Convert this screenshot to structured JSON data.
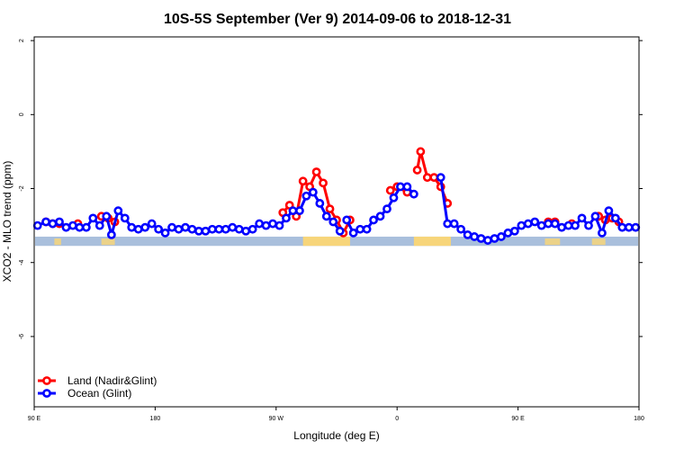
{
  "chart_data": {
    "type": "line",
    "title": "10S-5S September (Ver 9)   2014-09-06 to 2018-12-31",
    "xlabel": "Longitude (deg E)",
    "ylabel": "XCO2 - MLO trend (ppm)",
    "xlim": [
      60,
      420
    ],
    "ylim": [
      -7.9,
      2.1
    ],
    "x_ticks": [
      {
        "value": 60,
        "label": "90 E"
      },
      {
        "value": 132,
        "label": "180"
      },
      {
        "value": 204,
        "label": "90 W"
      },
      {
        "value": 276,
        "label": "0"
      },
      {
        "value": 348,
        "label": "90 E"
      },
      {
        "value": 420,
        "label": "180"
      }
    ],
    "y_ticks": [
      {
        "value": 2,
        "label": "2"
      },
      {
        "value": 0,
        "label": "0"
      },
      {
        "value": -2,
        "label": "-2"
      },
      {
        "value": -4,
        "label": "-4"
      },
      {
        "value": -6,
        "label": "-6"
      }
    ],
    "legend_position": "bottom-left",
    "land_mask_band": {
      "y_range": [
        -3.55,
        -3.3
      ],
      "ocean_color": "#a9bfdc",
      "land_color": "#f7d57a",
      "land_segments": [
        [
          220,
          248
        ],
        [
          286,
          308
        ]
      ],
      "island_patches": [
        [
          72,
          76
        ],
        [
          100,
          108
        ],
        [
          364,
          373
        ],
        [
          392,
          400
        ]
      ]
    },
    "series": [
      {
        "name": "Land (Nadir&Glint)",
        "color": "#ff0000",
        "segments": [
          {
            "x": [
              67,
              71,
              75
            ],
            "y": [
              -2.9,
              -2.95,
              -2.95
            ]
          },
          {
            "x": [
              86
            ],
            "y": [
              -2.95
            ]
          },
          {
            "x": [
              100,
              104,
              108
            ],
            "y": [
              -2.75,
              -2.8,
              -2.9
            ]
          },
          {
            "x": [
              208,
              212,
              216,
              220,
              224,
              228,
              232,
              236,
              240,
              244,
              248
            ],
            "y": [
              -2.65,
              -2.45,
              -2.75,
              -1.8,
              -1.95,
              -1.55,
              -1.85,
              -2.55,
              -2.85,
              -3.2,
              -2.85
            ]
          },
          {
            "x": [
              272,
              276,
              282
            ],
            "y": [
              -2.05,
              -1.95,
              -2.1
            ]
          },
          {
            "x": [
              288,
              290,
              294,
              298,
              302,
              306
            ],
            "y": [
              -1.5,
              -1.0,
              -1.7,
              -1.7,
              -1.95,
              -2.4
            ]
          },
          {
            "x": [
              366,
              370
            ],
            "y": [
              -2.9,
              -2.9
            ]
          },
          {
            "x": [
              380
            ],
            "y": [
              -2.95
            ]
          },
          {
            "x": [
              396,
              400,
              404,
              408
            ],
            "y": [
              -2.75,
              -2.85,
              -2.8,
              -2.9
            ]
          }
        ]
      },
      {
        "name": "Ocean (Glint)",
        "color": "#0000ff",
        "segments": [
          {
            "x": [
              62,
              67,
              71,
              75,
              79,
              83,
              87,
              91,
              95,
              99,
              103,
              106,
              110,
              114,
              118,
              122,
              126,
              130,
              134,
              138,
              142,
              146,
              150,
              154,
              158,
              162,
              166,
              170,
              174,
              178,
              182,
              186,
              190,
              194,
              198,
              202,
              206,
              210,
              214,
              218,
              222,
              226,
              230,
              234,
              238,
              242
            ],
            "y": [
              -3.0,
              -2.9,
              -2.95,
              -2.9,
              -3.05,
              -3.0,
              -3.05,
              -3.05,
              -2.8,
              -3.0,
              -2.75,
              -3.25,
              -2.6,
              -2.8,
              -3.05,
              -3.1,
              -3.05,
              -2.95,
              -3.1,
              -3.2,
              -3.05,
              -3.1,
              -3.05,
              -3.1,
              -3.15,
              -3.15,
              -3.1,
              -3.1,
              -3.1,
              -3.05,
              -3.1,
              -3.15,
              -3.1,
              -2.95,
              -3.0,
              -2.95,
              -3.0,
              -2.8,
              -2.6,
              -2.6,
              -2.2,
              -2.1,
              -2.4,
              -2.75,
              -2.9,
              -3.15
            ]
          },
          {
            "x": [
              246,
              250,
              254,
              258,
              262,
              266,
              270,
              274,
              278,
              282,
              286
            ],
            "y": [
              -2.85,
              -3.2,
              -3.1,
              -3.1,
              -2.85,
              -2.75,
              -2.55,
              -2.25,
              -1.95,
              -1.95,
              -2.15
            ]
          },
          {
            "x": [
              302,
              306,
              310,
              314,
              318,
              322,
              326,
              330,
              334,
              338,
              342,
              346,
              350,
              354,
              358,
              362,
              366,
              370,
              374,
              378,
              382,
              386,
              390,
              394,
              398,
              402,
              406,
              410,
              414,
              418
            ],
            "y": [
              -1.7,
              -2.95,
              -2.95,
              -3.1,
              -3.25,
              -3.3,
              -3.35,
              -3.4,
              -3.35,
              -3.3,
              -3.2,
              -3.15,
              -3.0,
              -2.95,
              -2.9,
              -3.0,
              -2.95,
              -2.95,
              -3.05,
              -3.0,
              -3.0,
              -2.8,
              -3.0,
              -2.75,
              -3.2,
              -2.6,
              -2.8,
              -3.05,
              -3.05,
              -3.05
            ]
          }
        ]
      }
    ]
  }
}
